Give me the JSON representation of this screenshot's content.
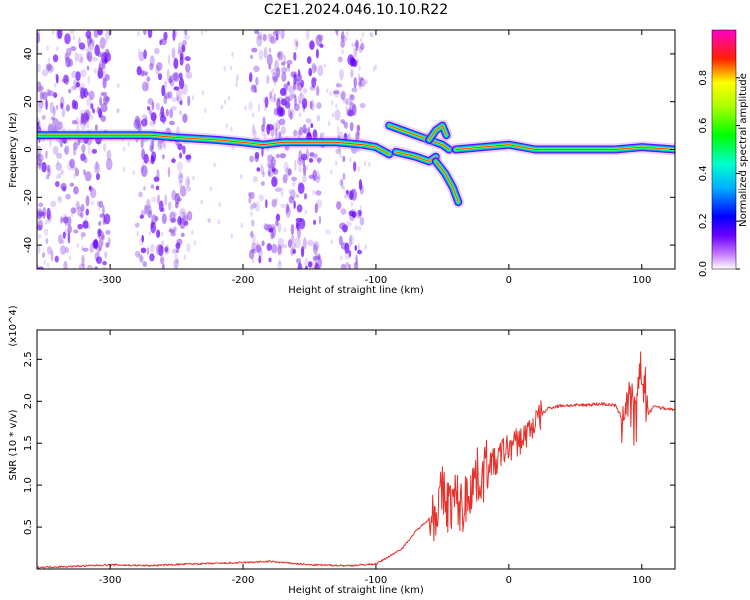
{
  "figure_title": "C2E1.2024.046.10.10.R22",
  "colors": {
    "snr_line": "#e8302a",
    "spectrogram_noise": "#8a3ee8",
    "axis": "#000000"
  },
  "chart_data": [
    {
      "type": "heatmap",
      "title": "",
      "xlabel": "Height of straight line (km)",
      "ylabel": "Frequency (Hz)",
      "xlim": [
        -355,
        125
      ],
      "ylim": [
        -50,
        50
      ],
      "xticks": [
        "-300",
        "-200",
        "-100",
        "0",
        "100"
      ],
      "xtick_values": [
        -300,
        -200,
        -100,
        0,
        100
      ],
      "yticks": [
        "-40",
        "-20",
        "0",
        "20",
        "40"
      ],
      "ytick_values": [
        -40,
        -20,
        0,
        20,
        40
      ],
      "colorbar": {
        "label": "Normalized spectral amplitude",
        "range": [
          0,
          1
        ],
        "ticks": [
          "0.0",
          "0.2",
          "0.4",
          "0.6",
          "0.8"
        ],
        "tick_values": [
          0.0,
          0.2,
          0.4,
          0.6,
          0.8
        ],
        "colormap": "rainbow (magenta-blue-cyan-green-yellow-red-magenta)"
      },
      "ridges": [
        {
          "name": "main",
          "points": [
            [
              -355,
              6
            ],
            [
              -320,
              6
            ],
            [
              -300,
              6
            ],
            [
              -270,
              6
            ],
            [
              -250,
              5
            ],
            [
              -220,
              4
            ],
            [
              -200,
              3
            ],
            [
              -185,
              2
            ],
            [
              -170,
              3
            ],
            [
              -150,
              3
            ],
            [
              -130,
              3
            ],
            [
              -110,
              2
            ],
            [
              -100,
              1
            ],
            [
              -90,
              -2
            ]
          ]
        },
        {
          "name": "upper-branch",
          "points": [
            [
              -90,
              10
            ],
            [
              -80,
              8
            ],
            [
              -70,
              6
            ],
            [
              -60,
              4
            ],
            [
              -50,
              2
            ],
            [
              -45,
              0
            ]
          ]
        },
        {
          "name": "lower-branch",
          "points": [
            [
              -85,
              -1
            ],
            [
              -70,
              -3
            ],
            [
              -60,
              -5
            ],
            [
              -55,
              -3
            ]
          ]
        },
        {
          "name": "rising-branch",
          "points": [
            [
              -60,
              4
            ],
            [
              -55,
              8
            ],
            [
              -50,
              10
            ],
            [
              -47,
              6
            ]
          ]
        },
        {
          "name": "descending-branch",
          "points": [
            [
              -55,
              -5
            ],
            [
              -48,
              -10
            ],
            [
              -42,
              -16
            ],
            [
              -38,
              -22
            ]
          ]
        },
        {
          "name": "tail",
          "points": [
            [
              -40,
              0
            ],
            [
              -20,
              1
            ],
            [
              0,
              2
            ],
            [
              20,
              0
            ],
            [
              50,
              0
            ],
            [
              80,
              0
            ],
            [
              100,
              1
            ],
            [
              125,
              0
            ]
          ]
        }
      ],
      "noise_bands": [
        [
          -355,
          -300
        ],
        [
          -280,
          -240
        ],
        [
          -195,
          -140
        ],
        [
          -130,
          -110
        ]
      ]
    },
    {
      "type": "line",
      "title": "",
      "xlabel": "Height of straight line (km)",
      "ylabel": "SNR (10 * v/v)",
      "y_multiplier": "(x10^4)",
      "xlim": [
        -355,
        125
      ],
      "ylim": [
        0,
        2.85
      ],
      "xticks": [
        "-300",
        "-200",
        "-100",
        "0",
        "100"
      ],
      "xtick_values": [
        -300,
        -200,
        -100,
        0,
        100
      ],
      "yticks": [
        "0.5",
        "1.0",
        "1.5",
        "2.0",
        "2.5"
      ],
      "ytick_values": [
        0.5,
        1.0,
        1.5,
        2.0,
        2.5
      ],
      "series": [
        {
          "x": [
            -355,
            -330,
            -300,
            -270,
            -240,
            -210,
            -180,
            -150,
            -120,
            -100,
            -90,
            -80,
            -70,
            -60,
            -55,
            -50,
            -45,
            -40,
            -35,
            -30,
            -25,
            -20,
            -15,
            -10,
            -5,
            0,
            5,
            10,
            15,
            20,
            25,
            30,
            40,
            50,
            60,
            70,
            80,
            85,
            90,
            95,
            100,
            105,
            110,
            115,
            125
          ],
          "y": [
            0.02,
            0.03,
            0.05,
            0.04,
            0.06,
            0.07,
            0.09,
            0.05,
            0.04,
            0.06,
            0.15,
            0.25,
            0.45,
            0.6,
            0.7,
            0.9,
            0.75,
            0.85,
            0.7,
            0.95,
            1.1,
            1.1,
            1.3,
            1.25,
            1.4,
            1.45,
            1.5,
            1.55,
            1.65,
            1.75,
            1.85,
            1.92,
            1.95,
            1.95,
            1.96,
            1.97,
            1.95,
            1.8,
            2.1,
            1.7,
            2.4,
            1.85,
            1.95,
            1.92,
            1.9
          ]
        }
      ]
    }
  ]
}
